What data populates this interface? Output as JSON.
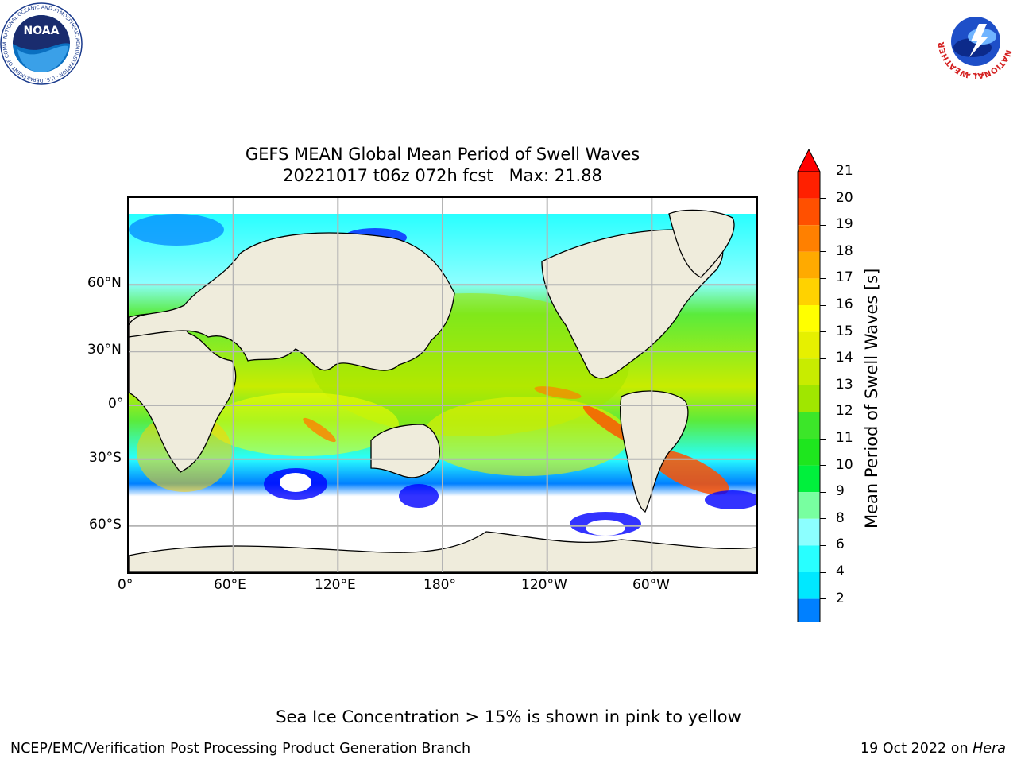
{
  "header": {
    "title": "GEFS MEAN Global Mean Period of Swell Waves",
    "subtitle": "20221017 t06z 072h fcst   Max: 21.88"
  },
  "logos": {
    "noaa": {
      "text": "NOAA",
      "ring": "NATIONAL OCEANIC AND ATMOSPHERIC ADMINISTRATION · U.S. DEPARTMENT OF COMMERCE"
    },
    "nws": {
      "ring": "NATIONAL WEATHER SERVICE"
    }
  },
  "map": {
    "lon_labels": [
      "0°",
      "60°E",
      "120°E",
      "180°",
      "120°W",
      "60°W"
    ],
    "lat_labels": [
      "60°N",
      "30°N",
      "0°",
      "30°S",
      "60°S"
    ],
    "colors": {
      "land": "#efecdc",
      "ocean_mid": "#5aeb3c",
      "coast": "#000000",
      "grid": "#b4b4b4"
    }
  },
  "colorbar": {
    "label": "Mean Period of Swell Waves [s]",
    "ticks": [
      "21",
      "20",
      "19",
      "18",
      "17",
      "16",
      "15",
      "14",
      "13",
      "12",
      "11",
      "10",
      "9",
      "8",
      "6",
      "4",
      "2"
    ],
    "colors": [
      "#ff2000",
      "#ff5000",
      "#ff8000",
      "#ffaa00",
      "#ffd200",
      "#ffff00",
      "#e6f000",
      "#c8ec00",
      "#a0e600",
      "#3ce629",
      "#1ee61e",
      "#00f03c",
      "#78ffa0",
      "#8cffff",
      "#28ffff",
      "#00e8ff",
      "#0080ff"
    ],
    "over_color": "#ff0000",
    "under_color": "#0000ff"
  },
  "footer": {
    "note": "Sea Ice Concentration > 15% is shown in pink to yellow",
    "org": "NCEP/EMC/Verification Post Processing Product Generation Branch",
    "date": "19 Oct 2022 on",
    "host": "Hera"
  }
}
